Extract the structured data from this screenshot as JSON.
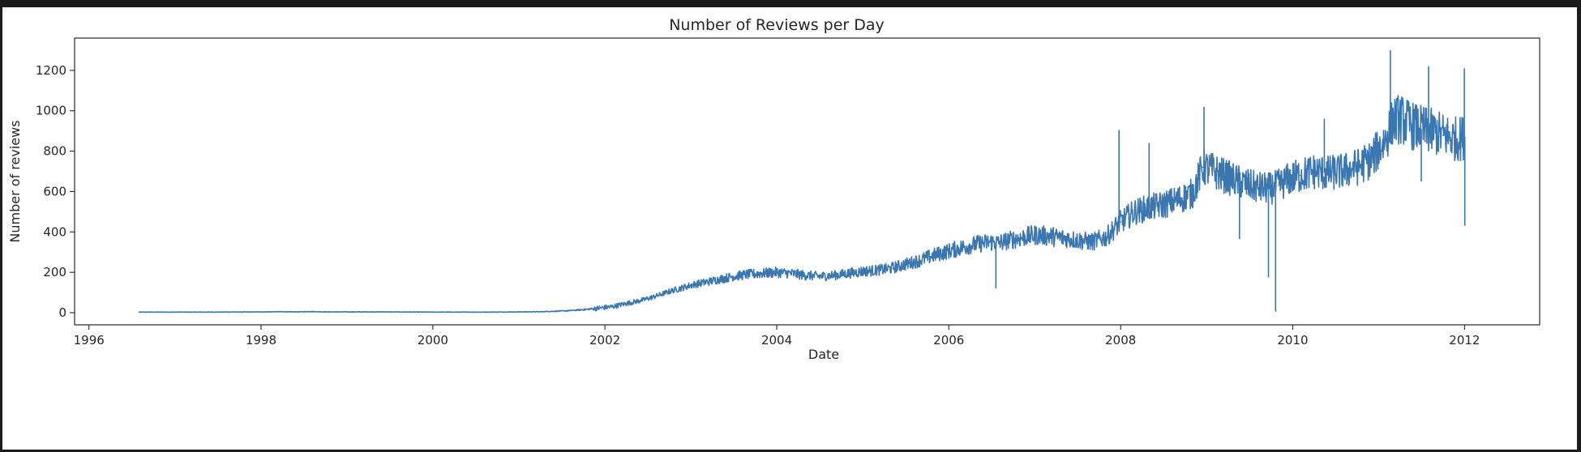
{
  "chart_data": {
    "type": "line",
    "title": "Number of Reviews per Day",
    "xlabel": "Date",
    "ylabel": "Number of reviews",
    "xlim": [
      "1995-11-01",
      "2012-11-15"
    ],
    "ylim": [
      -60,
      1360
    ],
    "x_ticks": [
      "1996",
      "1998",
      "2000",
      "2002",
      "2004",
      "2006",
      "2008",
      "2010",
      "2012"
    ],
    "y_ticks": [
      0,
      200,
      400,
      600,
      800,
      1000,
      1200
    ],
    "grid": false,
    "legend": "none",
    "line_color": "#3a76af",
    "series": [
      {
        "x": [
          "1996-08-01",
          "1997-01-01",
          "1997-06-01",
          "1998-01-01",
          "1998-04-01",
          "1998-06-01",
          "1998-08-01",
          "1998-10-01",
          "1999-01-01",
          "1999-06-01",
          "2000-01-01",
          "2000-06-01",
          "2000-09-01",
          "2001-01-01",
          "2001-04-01",
          "2001-06-01",
          "2001-08-01",
          "2001-10-01",
          "2001-12-01",
          "2002-02-01",
          "2002-04-01",
          "2002-06-01",
          "2002-08-01",
          "2002-10-01",
          "2002-12-01",
          "2003-01-15",
          "2003-03-01",
          "2003-05-01",
          "2003-07-01",
          "2003-09-01",
          "2003-11-01",
          "2004-01-01",
          "2004-03-01",
          "2004-05-01",
          "2004-07-01",
          "2004-09-01",
          "2004-11-01",
          "2005-01-01",
          "2005-03-01",
          "2005-05-01",
          "2005-07-01",
          "2005-09-01",
          "2005-11-01",
          "2006-01-01",
          "2006-03-01",
          "2006-05-01",
          "2006-07-01",
          "2006-08-01",
          "2006-09-01",
          "2006-11-01",
          "2007-01-01",
          "2007-03-01",
          "2007-05-01",
          "2007-07-01",
          "2007-09-01",
          "2007-11-01",
          "2008-01-01",
          "2008-03-01",
          "2008-05-01",
          "2008-07-01",
          "2008-09-01",
          "2008-11-01",
          "2008-12-15",
          "2009-02-01",
          "2009-04-01",
          "2009-06-01",
          "2009-08-01",
          "2009-10-01",
          "2009-11-01",
          "2009-12-15",
          "2010-02-01",
          "2010-04-01",
          "2010-06-01",
          "2010-08-01",
          "2010-10-01",
          "2010-12-01",
          "2011-02-01",
          "2011-03-01",
          "2011-04-01",
          "2011-06-01",
          "2011-08-01",
          "2011-10-01",
          "2011-12-01",
          "2012-01-01"
        ],
        "y": [
          3,
          3,
          3,
          4,
          5,
          4,
          6,
          4,
          4,
          4,
          3,
          3,
          3,
          4,
          5,
          7,
          10,
          15,
          22,
          30,
          45,
          60,
          80,
          105,
          125,
          140,
          150,
          165,
          180,
          190,
          195,
          200,
          195,
          185,
          180,
          185,
          195,
          205,
          210,
          220,
          240,
          260,
          285,
          305,
          325,
          340,
          350,
          345,
          355,
          370,
          385,
          380,
          370,
          360,
          350,
          375,
          450,
          500,
          520,
          535,
          560,
          590,
          720,
          700,
          670,
          640,
          620,
          615,
          630,
          660,
          680,
          700,
          690,
          700,
          720,
          760,
          860,
          950,
          960,
          920,
          900,
          880,
          860,
          870
        ]
      }
    ],
    "spikes": [
      {
        "x": "2006-07-20",
        "y": 120
      },
      {
        "x": "2007-12-25",
        "y": 905
      },
      {
        "x": "2008-05-01",
        "y": 840
      },
      {
        "x": "2008-12-20",
        "y": 1020
      },
      {
        "x": "2009-05-20",
        "y": 365
      },
      {
        "x": "2009-09-20",
        "y": 175
      },
      {
        "x": "2009-10-20",
        "y": 5
      },
      {
        "x": "2010-05-15",
        "y": 960
      },
      {
        "x": "2011-02-20",
        "y": 1300
      },
      {
        "x": "2011-07-01",
        "y": 650
      },
      {
        "x": "2011-08-01",
        "y": 1220
      },
      {
        "x": "2011-12-31",
        "y": 1210
      },
      {
        "x": "2012-01-02",
        "y": 430
      }
    ]
  }
}
